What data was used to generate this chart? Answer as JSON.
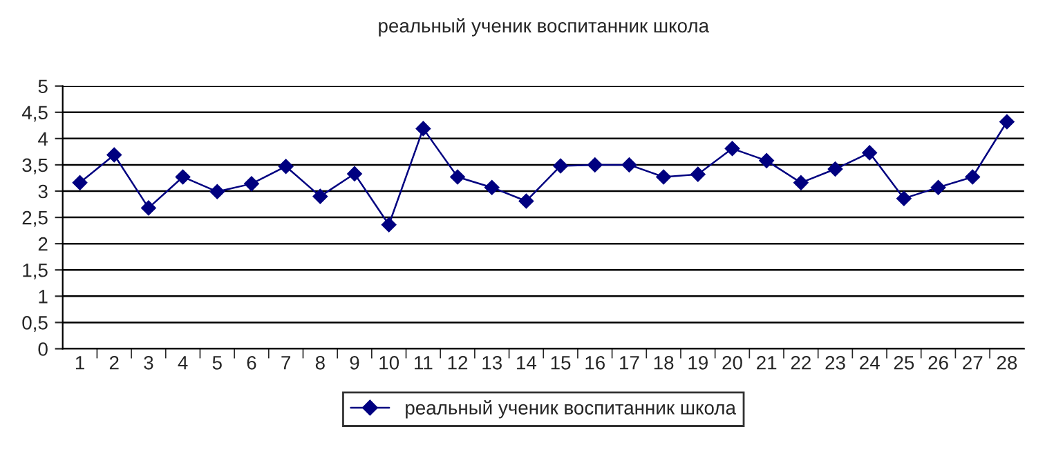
{
  "chart_data": {
    "type": "line",
    "title": "реальный ученик воспитанник школа",
    "categories": [
      "1",
      "2",
      "3",
      "4",
      "5",
      "6",
      "7",
      "8",
      "9",
      "10",
      "11",
      "12",
      "13",
      "14",
      "15",
      "16",
      "17",
      "18",
      "19",
      "20",
      "21",
      "22",
      "23",
      "24",
      "25",
      "26",
      "27",
      "28"
    ],
    "series": [
      {
        "name": "реальный ученик воспитанник школа",
        "color": "#000080",
        "values": [
          3.16,
          3.69,
          2.68,
          3.27,
          2.99,
          3.14,
          3.47,
          2.9,
          3.33,
          2.36,
          4.19,
          3.27,
          3.07,
          2.81,
          3.48,
          3.5,
          3.5,
          3.27,
          3.32,
          3.81,
          3.58,
          3.16,
          3.42,
          3.73,
          2.86,
          3.07,
          3.27,
          4.32
        ]
      }
    ],
    "ylim": [
      0,
      5
    ],
    "yticks": [
      0,
      {
        "value": 0.5,
        "label": "0,5"
      },
      1,
      {
        "value": 1.5,
        "label": "1,5"
      },
      2,
      {
        "value": 2.5,
        "label": "2,5"
      },
      3,
      {
        "value": 3.5,
        "label": "3,5"
      },
      4,
      {
        "value": 4.5,
        "label": "4,5"
      },
      5
    ],
    "grid": "y",
    "legend": "bottom",
    "marker": "diamond",
    "line_style": "solid"
  }
}
